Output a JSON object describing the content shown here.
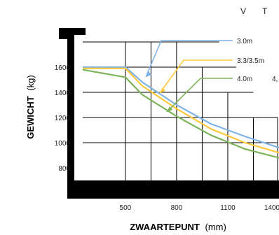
{
  "chart_data": {
    "type": "line",
    "title": "",
    "header_labels": [
      "V",
      "T"
    ],
    "xlabel_bold": "ZWAARTEPUNT",
    "xlabel_unit": "(mm)",
    "ylabel_bold": "GEWICHT",
    "ylabel_unit": "(kg)",
    "x_ticks": [
      "500",
      "800",
      "1100",
      "1400"
    ],
    "y_ticks": [
      "1600",
      "1400",
      "1200",
      "1000",
      "800"
    ],
    "xlim": [
      250,
      1400
    ],
    "ylim": [
      700,
      1800
    ],
    "grid": true,
    "legend_position": "top-right",
    "series": [
      {
        "name": "3.0m",
        "color": "#7fb3e6",
        "x": [
          250,
          500,
          600,
          800,
          1000,
          1200,
          1400
        ],
        "y": [
          1600,
          1600,
          1480,
          1300,
          1150,
          1050,
          960
        ]
      },
      {
        "name": "3.3/3.5m",
        "color": "#ffc83d",
        "x": [
          250,
          500,
          600,
          800,
          1000,
          1200,
          1400
        ],
        "y": [
          1590,
          1590,
          1450,
          1270,
          1110,
          1000,
          920
        ]
      },
      {
        "name": "4.0m",
        "color": "#7cb35a",
        "x": [
          250,
          500,
          600,
          800,
          1000,
          1200,
          1400
        ],
        "y": [
          1580,
          1520,
          1380,
          1210,
          1060,
          950,
          880
        ]
      }
    ],
    "legend_extra": "4,"
  }
}
